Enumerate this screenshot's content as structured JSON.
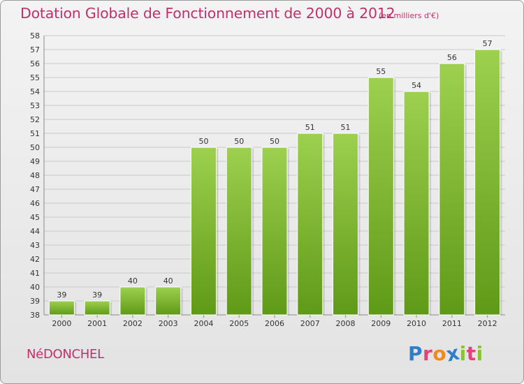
{
  "header": {
    "title": "Dotation Globale de Fonctionnement de 2000 à 2012",
    "units": "(en milliers d'€)"
  },
  "footer": {
    "commune": "NéDONCHEL",
    "logo_letters": [
      "P",
      "r",
      "o",
      "x",
      "i",
      "t",
      "i"
    ]
  },
  "colors": {
    "title": "#c0306a",
    "bar_top": "#9dd04f",
    "bar_bottom": "#5f9a17",
    "grid": "#c9c9c9",
    "logo": [
      "#2f7fc8",
      "#e0447a",
      "#f08a1f",
      "#2f7fc8",
      "#8ac23a",
      "#e0447a",
      "#8ac23a"
    ]
  },
  "chart_data": {
    "type": "bar",
    "title": "Dotation Globale de Fonctionnement de 2000 à 2012",
    "xlabel": "",
    "ylabel": "",
    "categories": [
      "2000",
      "2001",
      "2002",
      "2003",
      "2004",
      "2005",
      "2006",
      "2007",
      "2008",
      "2009",
      "2010",
      "2011",
      "2012"
    ],
    "values": [
      39,
      39,
      40,
      40,
      50,
      50,
      50,
      51,
      51,
      55,
      54,
      56,
      57
    ],
    "ylim": [
      38,
      58
    ],
    "yticks": [
      38,
      39,
      40,
      41,
      42,
      43,
      44,
      45,
      46,
      47,
      48,
      49,
      50,
      51,
      52,
      53,
      54,
      55,
      56,
      57,
      58
    ],
    "grid": true,
    "legend": "none"
  }
}
